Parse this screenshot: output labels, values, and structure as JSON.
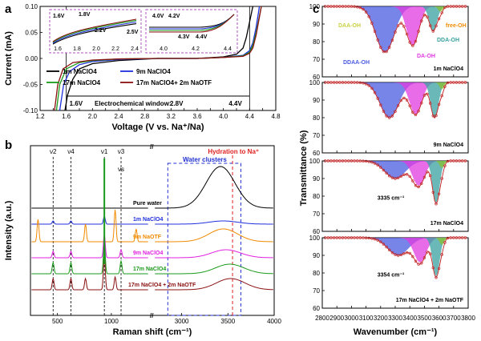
{
  "figure": {
    "panel_a": "a",
    "panel_b": "b",
    "panel_c": "c"
  },
  "colors": {
    "c1m": "#000000",
    "c9m": "#1f2fdc",
    "c17m": "#1a9a1a",
    "cOTF": "#8a1010",
    "water": "#000000",
    "naotf": "#f08a00",
    "naclo4_9m": "#e020e0",
    "ddaa": "#4a5be0",
    "daoh": "#e03ae0",
    "ddaoh": "#3aa0a0",
    "freeoh": "#88c030",
    "daaoh": "#c8d040",
    "fit": "#c02020",
    "guide": "#2030d0",
    "na": "#e02020"
  },
  "chart_data": [
    {
      "type": "line",
      "panel": "a",
      "title": "",
      "xlabel": "Voltage (V vs. Na⁺/Na)",
      "ylabel": "Current (mA)",
      "xlim": [
        1.2,
        4.8
      ],
      "ylim": [
        -0.1,
        0.1
      ],
      "xticks": [
        "1.2",
        "1.4",
        "1.6",
        "1.8",
        "2.0",
        "2.2",
        "2.4",
        "2.6",
        "2.8",
        "3.0",
        "3.2",
        "3.4",
        "3.6",
        "3.8",
        "4.0",
        "4.2",
        "4.4",
        "4.6",
        "4.8"
      ],
      "yticks": [
        "0.10",
        "0.05",
        "0.00",
        "-0.05",
        "-0.10"
      ],
      "legend": [
        "1m NaClO4",
        "9m NaClO4",
        "17m NaClO4",
        "17m NaClO4+ 2m NaOTF"
      ],
      "series": [
        {
          "name": "1m NaClO4",
          "x": [
            1.58,
            1.62,
            1.7,
            1.8,
            2.0,
            2.4,
            3.0,
            3.6,
            4.0,
            4.2,
            4.3,
            4.35,
            4.4,
            4.45
          ],
          "y": [
            -0.1,
            -0.07,
            -0.04,
            -0.02,
            -0.01,
            -0.004,
            0,
            0,
            0.003,
            0.008,
            0.02,
            0.04,
            0.07,
            0.1
          ]
        },
        {
          "name": "9m NaClO4",
          "x": [
            1.5,
            1.56,
            1.65,
            1.8,
            2.0,
            2.4,
            3.0,
            3.6,
            4.0,
            4.3,
            4.4,
            4.45,
            4.5,
            4.55
          ],
          "y": [
            -0.1,
            -0.05,
            -0.025,
            -0.012,
            -0.006,
            -0.002,
            0,
            0,
            0.002,
            0.006,
            0.015,
            0.03,
            0.06,
            0.1
          ]
        },
        {
          "name": "17m NaClO4",
          "x": [
            1.45,
            1.5,
            1.6,
            1.8,
            2.0,
            2.4,
            3.0,
            3.6,
            4.0,
            4.3,
            4.4,
            4.45,
            4.5,
            4.58
          ],
          "y": [
            -0.1,
            -0.05,
            -0.02,
            -0.008,
            -0.004,
            -0.001,
            0,
            0,
            0.002,
            0.005,
            0.012,
            0.025,
            0.05,
            0.1
          ]
        },
        {
          "name": "17m NaClO4+ 2m NaOTF",
          "x": [
            1.42,
            1.47,
            1.55,
            1.7,
            2.0,
            2.4,
            3.0,
            3.6,
            4.0,
            4.3,
            4.4,
            4.45,
            4.5,
            4.58
          ],
          "y": [
            -0.1,
            -0.05,
            -0.02,
            -0.008,
            -0.003,
            -0.001,
            0,
            0,
            0.002,
            0.004,
            0.01,
            0.02,
            0.045,
            0.1
          ]
        }
      ],
      "annotations": [
        "1.6V",
        "4.4V",
        "Electrochemical window:",
        "2.8V"
      ],
      "inset_left": {
        "labels": [
          "1.6V",
          "1.8V",
          "2.2V",
          "2.5V"
        ],
        "xticks": [
          "1.6",
          "1.8",
          "2.0",
          "2.2",
          "2.4"
        ]
      },
      "inset_right": {
        "labels": [
          "4.0V",
          "4.2V",
          "4.3V",
          "4.4V"
        ],
        "xticks": [
          "4.0",
          "4.2",
          "4.4"
        ]
      }
    },
    {
      "type": "line",
      "panel": "b",
      "xlabel": "Raman shift (cm⁻¹)",
      "ylabel": "Intensity (a.u.)",
      "xticks": [
        "500",
        "1000",
        "3000",
        "3500",
        "4000"
      ],
      "modes": [
        "ν2",
        "ν4",
        "ν1",
        "ν3",
        "νs"
      ],
      "headers": [
        "Water clusters",
        "Hydration to Na⁺"
      ],
      "series_labels": [
        "Pure water",
        "1m NaClO4",
        "9m NaOTF",
        "9m NaClO4",
        "17m NaClO4",
        "17m NaClO4 + 2m NaOTF"
      ]
    },
    {
      "type": "area",
      "panel": "c",
      "xlabel": "Wavenumber (cm⁻¹)",
      "ylabel": "Transmittance (%)",
      "xlim": [
        2800,
        3800
      ],
      "ylim": [
        60,
        100
      ],
      "xticks": [
        "2800",
        "2900",
        "3000",
        "3100",
        "3200",
        "3300",
        "3400",
        "3500",
        "3600",
        "3700",
        "3800"
      ],
      "yticks": [
        "100",
        "90",
        "80",
        "70",
        "60"
      ],
      "components": [
        "DAA-OH",
        "free-OH",
        "DDA-OH",
        "DA-OH",
        "DDAA-OH"
      ],
      "subpanels": [
        {
          "label": "1m NaClO4",
          "annotation": ""
        },
        {
          "label": "9m NaClO4",
          "annotation": ""
        },
        {
          "label": "17m NaClO4",
          "annotation": "3335 cm⁻¹"
        },
        {
          "label": "17m NaClO4 + 2m NaOTF",
          "annotation": "3354 cm⁻¹"
        }
      ]
    }
  ]
}
